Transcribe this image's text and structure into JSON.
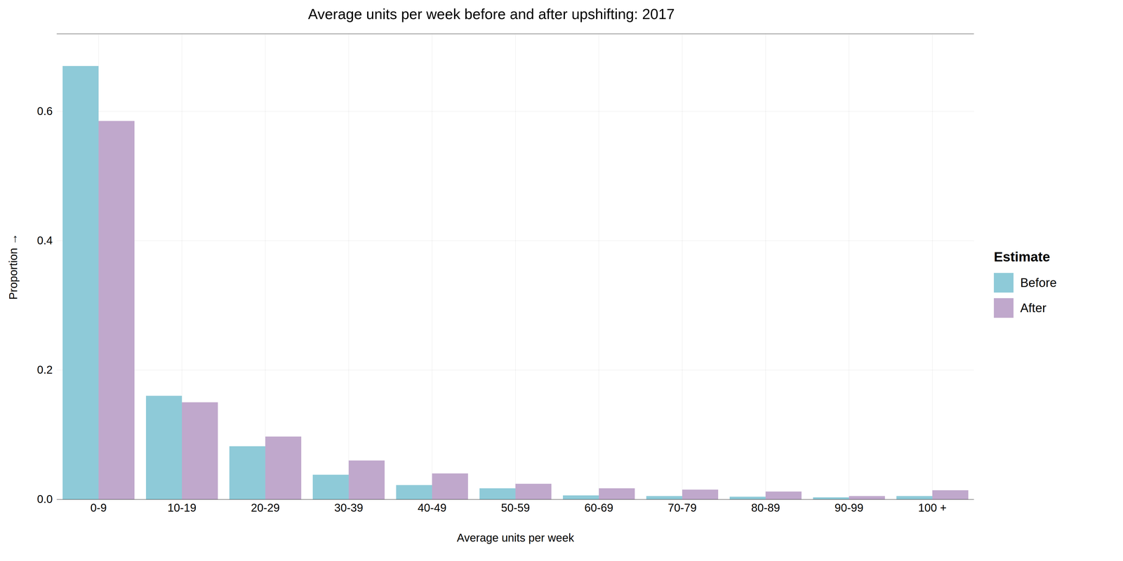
{
  "chart_data": {
    "type": "bar",
    "title": "Average units per week before and after upshifting: 2017",
    "xlabel": "Average units per week",
    "ylabel": "Proportion",
    "categories": [
      "0-9",
      "10-19",
      "20-29",
      "30-39",
      "40-49",
      "50-59",
      "60-69",
      "70-79",
      "80-89",
      "90-99",
      "100 +"
    ],
    "series": [
      {
        "name": "Before",
        "color": "#8ECAD8",
        "values": [
          0.67,
          0.16,
          0.082,
          0.038,
          0.022,
          0.017,
          0.006,
          0.005,
          0.004,
          0.003,
          0.005
        ]
      },
      {
        "name": "After",
        "color": "#C0A8CC",
        "values": [
          0.585,
          0.15,
          0.097,
          0.06,
          0.04,
          0.024,
          0.017,
          0.015,
          0.012,
          0.005,
          0.014
        ]
      }
    ],
    "ylim": [
      0,
      0.72
    ],
    "yticks": [
      {
        "value": 0,
        "label": "0.0"
      },
      0.2,
      0.4,
      0.6
    ],
    "grid": true,
    "legend": "right",
    "legend_title": "Estimate"
  }
}
